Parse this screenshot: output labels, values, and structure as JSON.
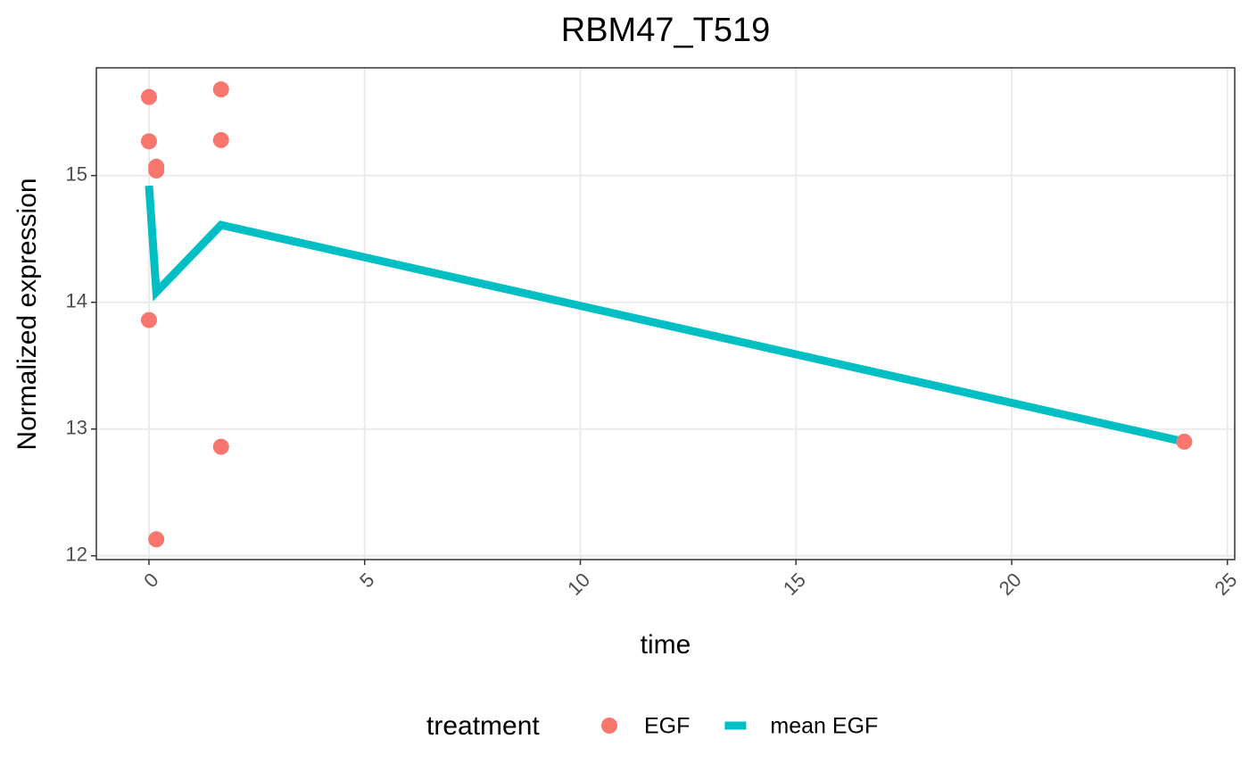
{
  "chart_data": {
    "type": "scatter",
    "title": "RBM47_T519",
    "x_label": "time",
    "y_label": "Normalized expression",
    "legend_title": "treatment",
    "legend_position": "bottom",
    "grid": true,
    "xlim": [
      -1.22,
      25.17
    ],
    "ylim": [
      11.97,
      15.85
    ],
    "xticks": [
      0,
      5,
      10,
      15,
      20,
      25
    ],
    "yticks": [
      12,
      13,
      14,
      15
    ],
    "series": [
      {
        "name": "EGF",
        "color": "#F8766D",
        "mark": "point",
        "x": [
          0,
          0,
          0,
          0.17,
          0.17,
          0.17,
          1.67,
          1.67,
          1.67,
          24
        ],
        "values": [
          15.62,
          15.27,
          13.86,
          15.07,
          15.04,
          12.13,
          15.68,
          15.28,
          12.86,
          12.9
        ]
      },
      {
        "name": "mean EGF",
        "color": "#00BFC4",
        "mark": "line",
        "x": [
          0,
          0.17,
          1.67,
          24
        ],
        "values": [
          14.92,
          14.08,
          14.61,
          12.9
        ]
      }
    ]
  }
}
